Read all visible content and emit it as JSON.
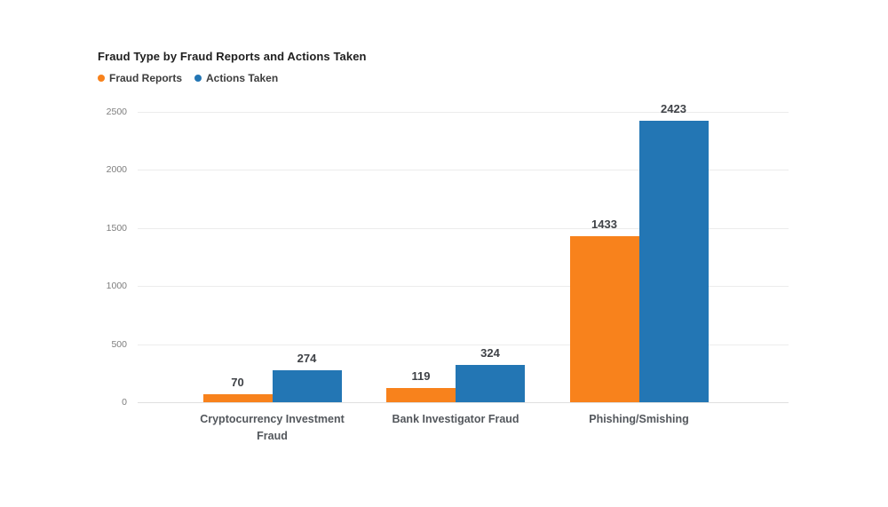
{
  "page": {
    "background_color": "#ffffff"
  },
  "chart_data": {
    "type": "bar",
    "title": "Fraud Type by Fraud Reports and Actions Taken",
    "categories": [
      "Cryptocurrency Investment Fraud",
      "Bank Investigator Fraud",
      "Phishing/Smishing"
    ],
    "series": [
      {
        "name": "Fraud Reports",
        "color": "#F8821C",
        "values": [
          70,
          119,
          1433
        ]
      },
      {
        "name": "Actions Taken",
        "color": "#2376B4",
        "values": [
          274,
          324,
          2423
        ]
      }
    ],
    "xlabel": "",
    "ylabel": "",
    "y_axis": {
      "min": 0,
      "max": 2500,
      "tick_interval": 500,
      "ticks": [
        0,
        500,
        1000,
        1500,
        2000,
        2500
      ]
    },
    "grid": "horizontal",
    "legend_position": "top-left",
    "data_labels_visible": true,
    "colors": {
      "grid_line": "#ececec",
      "axis_label": "#7d7d7d",
      "category_label": "#53575c",
      "value_label": "#3f4247",
      "title": "#1f1f1f"
    }
  }
}
